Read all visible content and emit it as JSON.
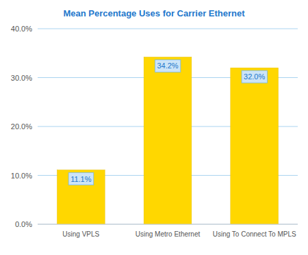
{
  "chart_data": {
    "type": "bar",
    "title": "Mean Percentage Uses for Carrier Ethernet",
    "categories": [
      "Using VPLS",
      "Using Metro Ethernet",
      "Using To Connect To MPLS"
    ],
    "values": [
      11.1,
      34.2,
      32.0
    ],
    "value_labels": [
      "11.1%",
      "34.2%",
      "32.0%"
    ],
    "data_labels": true,
    "color": "#FFD700",
    "ylim": [
      0,
      40
    ],
    "yticks": [
      {
        "value": 0,
        "label": "0.0%"
      },
      {
        "value": 10,
        "label": "10.0%"
      },
      {
        "value": 20,
        "label": "20.0%"
      },
      {
        "value": 30,
        "label": "30.0%"
      },
      {
        "value": 40,
        "label": "40.0%"
      }
    ],
    "grid": true
  }
}
